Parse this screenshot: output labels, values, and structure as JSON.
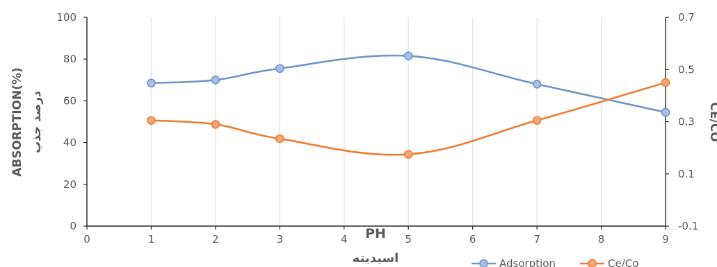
{
  "chart_data": {
    "type": "line",
    "xlabel": "PH",
    "xlabel_secondary": "اسیدیته",
    "ylabel": "ABSORPTION(%)",
    "ylabel_secondary": "درصد جذب",
    "y2label": "CE/CO",
    "xlim": [
      0,
      9
    ],
    "ylim": [
      0,
      100
    ],
    "y2lim": [
      -0.1,
      0.7
    ],
    "x_ticks": [
      "0",
      "1",
      "2",
      "3",
      "4",
      "5",
      "6",
      "7",
      "8",
      "9"
    ],
    "y_ticks": [
      "0",
      "20",
      "40",
      "60",
      "80",
      "100"
    ],
    "y2_ticks": [
      "-0.1",
      "0.1",
      "0.3",
      "0.5",
      "0.7"
    ],
    "grid": "vertical",
    "legend_position": "bottom-right",
    "series": [
      {
        "name": "Adsorption",
        "axis": "left",
        "color": "#7394c9",
        "x": [
          1,
          2,
          3,
          5,
          7,
          9
        ],
        "values": [
          68.5,
          70,
          75.5,
          81.5,
          68,
          54.5
        ]
      },
      {
        "name": "Ce/Co",
        "axis": "right",
        "color": "#ed7d31",
        "x": [
          1,
          2,
          3,
          5,
          7,
          9
        ],
        "values": [
          0.305,
          0.29,
          0.235,
          0.175,
          0.305,
          0.45
        ]
      }
    ]
  }
}
